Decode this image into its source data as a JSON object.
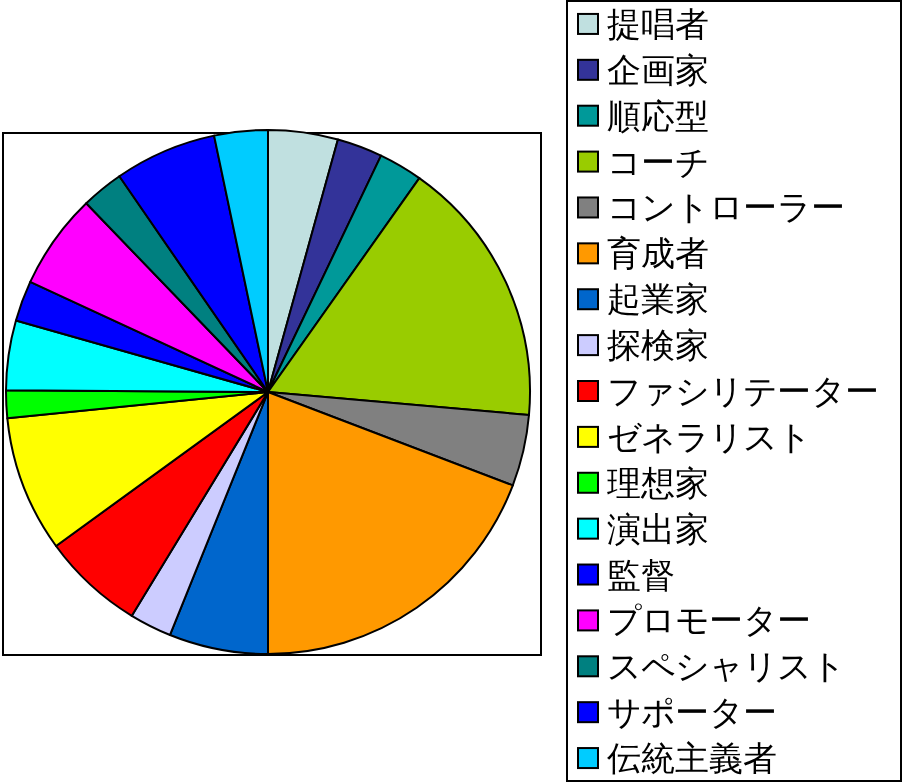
{
  "chart_data": {
    "type": "pie",
    "legend": "right",
    "categories": [
      "提唱者",
      "企画家",
      "順応型",
      "コーチ",
      "コントローラー",
      "育成者",
      "起業家",
      "探検家",
      "ファシリテーター",
      "ゼネラリスト",
      "理想家",
      "演出家",
      "監督",
      "プロモーター",
      "スペシャリスト",
      "サポーター",
      "伝統主義者"
    ],
    "values": [
      4.3,
      2.8,
      2.7,
      16.6,
      4.4,
      19.2,
      6.1,
      2.6,
      6.3,
      8.4,
      1.7,
      4.3,
      2.5,
      5.9,
      2.6,
      6.3,
      3.3
    ],
    "colors": [
      "#c0e0e0",
      "#333399",
      "#009999",
      "#99cc00",
      "#808080",
      "#ff9900",
      "#0066cc",
      "#ccccff",
      "#ff0000",
      "#ffff00",
      "#00ff00",
      "#00ffff",
      "#0000ff",
      "#ff00ff",
      "#008080",
      "#0000ff",
      "#00ccff"
    ]
  }
}
